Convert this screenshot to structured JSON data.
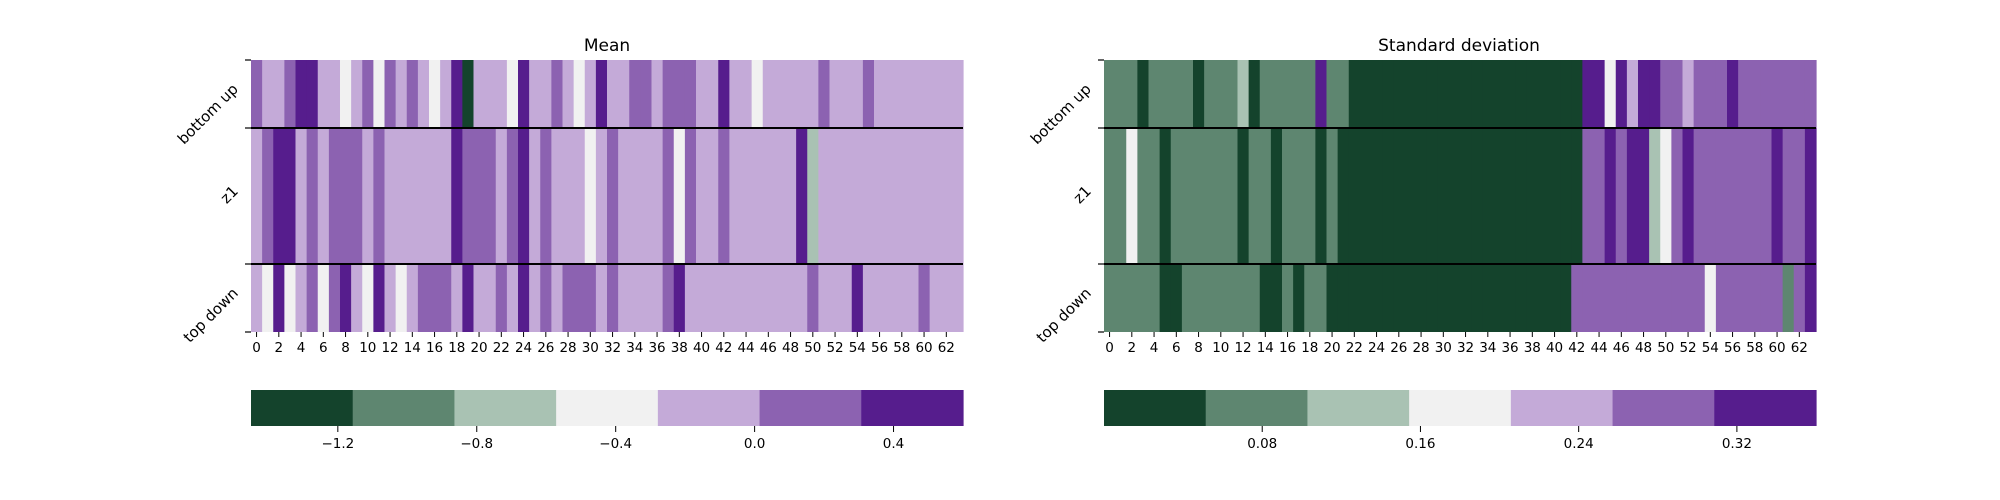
{
  "palette": [
    "#14432c",
    "#5e8670",
    "#a9c2b3",
    "#f1f1f1",
    "#c4aad8",
    "#8c62b1",
    "#561d8d"
  ],
  "row_labels": [
    "bottom up",
    "z1",
    "top down"
  ],
  "x_tick_labels": [
    "0",
    "2",
    "4",
    "6",
    "8",
    "10",
    "12",
    "14",
    "16",
    "18",
    "20",
    "22",
    "24",
    "26",
    "28",
    "30",
    "32",
    "34",
    "36",
    "38",
    "40",
    "42",
    "44",
    "46",
    "48",
    "50",
    "52",
    "54",
    "56",
    "58",
    "60",
    "62"
  ],
  "chart_data": [
    {
      "type": "heatmap",
      "title": "Mean",
      "rows": [
        "bottom up",
        "z1",
        "top down"
      ],
      "columns": 64,
      "color_levels": [
        -1.45,
        -1.1,
        -0.8,
        -0.45,
        -0.1,
        0.2,
        0.5
      ],
      "values": [
        [
          0.2,
          -0.1,
          -0.1,
          0.2,
          0.5,
          0.5,
          -0.1,
          -0.1,
          -0.45,
          -0.1,
          0.2,
          -0.45,
          0.2,
          -0.1,
          0.2,
          -0.1,
          -0.45,
          -0.1,
          0.5,
          -1.45,
          -0.1,
          -0.1,
          -0.1,
          -0.45,
          0.5,
          -0.1,
          -0.1,
          0.2,
          -0.1,
          -0.45,
          -0.1,
          0.5,
          -0.1,
          -0.1,
          0.2,
          0.2,
          -0.1,
          0.2,
          0.2,
          0.2,
          -0.1,
          -0.1,
          0.5,
          -0.1,
          -0.1,
          -0.45,
          -0.1,
          -0.1,
          -0.1,
          -0.1,
          -0.1,
          0.2,
          -0.1,
          -0.1,
          -0.1,
          0.2,
          -0.1,
          -0.1,
          -0.1,
          -0.1,
          -0.1,
          -0.1,
          -0.1,
          -0.1
        ],
        [
          -0.1,
          0.2,
          0.5,
          0.5,
          -0.1,
          0.2,
          -0.1,
          0.2,
          0.2,
          0.2,
          -0.1,
          0.2,
          -0.1,
          -0.1,
          -0.1,
          -0.1,
          -0.1,
          -0.1,
          0.5,
          0.2,
          0.2,
          0.2,
          -0.1,
          0.2,
          0.5,
          -0.1,
          0.2,
          -0.1,
          -0.1,
          -0.1,
          -0.45,
          -0.1,
          0.2,
          -0.1,
          -0.1,
          -0.1,
          -0.1,
          0.2,
          -0.45,
          0.2,
          -0.1,
          -0.1,
          0.2,
          -0.1,
          -0.1,
          -0.1,
          -0.1,
          -0.1,
          -0.1,
          0.5,
          -0.8,
          -0.1,
          -0.1,
          -0.1,
          -0.1,
          -0.1,
          -0.1,
          -0.1,
          -0.1,
          -0.1,
          -0.1,
          -0.1,
          -0.1,
          -0.1
        ],
        [
          -0.1,
          -0.45,
          0.5,
          -0.45,
          -0.1,
          0.2,
          -0.45,
          0.2,
          0.5,
          -0.1,
          -0.45,
          0.5,
          -0.1,
          -0.45,
          -0.1,
          0.2,
          0.2,
          0.2,
          -0.1,
          0.5,
          -0.1,
          -0.1,
          0.2,
          -0.1,
          0.5,
          -0.1,
          0.2,
          -0.1,
          0.2,
          0.2,
          0.2,
          -0.1,
          0.2,
          -0.1,
          -0.1,
          -0.1,
          -0.1,
          0.2,
          0.5,
          -0.1,
          -0.1,
          -0.1,
          -0.1,
          -0.1,
          -0.1,
          -0.1,
          -0.1,
          -0.1,
          -0.1,
          -0.1,
          0.2,
          -0.1,
          -0.1,
          -0.1,
          0.5,
          -0.1,
          -0.1,
          -0.1,
          -0.1,
          -0.1,
          0.2,
          -0.1,
          -0.1,
          -0.1
        ]
      ],
      "colorbar": {
        "ticks": [
          -1.2,
          -0.8,
          -0.4,
          0.0,
          0.4
        ],
        "tick_labels": [
          "−1.2",
          "−0.8",
          "−0.4",
          "0.0",
          "0.4"
        ],
        "range": [
          -1.45,
          0.6
        ]
      }
    },
    {
      "type": "heatmap",
      "title": "Standard deviation",
      "rows": [
        "bottom up",
        "z1",
        "top down"
      ],
      "columns": 64,
      "color_levels": [
        0.01,
        0.07,
        0.13,
        0.19,
        0.24,
        0.29,
        0.35
      ],
      "values": [
        [
          0.07,
          0.07,
          0.07,
          0.01,
          0.07,
          0.07,
          0.07,
          0.07,
          0.01,
          0.07,
          0.07,
          0.07,
          0.13,
          0.01,
          0.07,
          0.07,
          0.07,
          0.07,
          0.07,
          0.35,
          0.07,
          0.07,
          0.01,
          0.01,
          0.01,
          0.01,
          0.01,
          0.01,
          0.01,
          0.01,
          0.01,
          0.01,
          0.01,
          0.01,
          0.01,
          0.01,
          0.01,
          0.01,
          0.01,
          0.01,
          0.01,
          0.01,
          0.01,
          0.35,
          0.35,
          0.19,
          0.35,
          0.24,
          0.35,
          0.35,
          0.29,
          0.29,
          0.24,
          0.29,
          0.29,
          0.29,
          0.35,
          0.29,
          0.29,
          0.29,
          0.29,
          0.29,
          0.29,
          0.29
        ],
        [
          0.07,
          0.07,
          0.19,
          0.07,
          0.07,
          0.01,
          0.07,
          0.07,
          0.07,
          0.07,
          0.07,
          0.07,
          0.01,
          0.07,
          0.07,
          0.01,
          0.07,
          0.07,
          0.07,
          0.01,
          0.07,
          0.01,
          0.01,
          0.01,
          0.01,
          0.01,
          0.01,
          0.01,
          0.01,
          0.01,
          0.01,
          0.01,
          0.01,
          0.01,
          0.01,
          0.01,
          0.01,
          0.01,
          0.01,
          0.01,
          0.01,
          0.01,
          0.01,
          0.29,
          0.29,
          0.35,
          0.29,
          0.35,
          0.35,
          0.13,
          0.19,
          0.29,
          0.35,
          0.29,
          0.29,
          0.29,
          0.29,
          0.29,
          0.29,
          0.29,
          0.35,
          0.29,
          0.29,
          0.35
        ],
        [
          0.07,
          0.07,
          0.07,
          0.07,
          0.07,
          0.01,
          0.01,
          0.07,
          0.07,
          0.07,
          0.07,
          0.07,
          0.07,
          0.07,
          0.01,
          0.01,
          0.07,
          0.01,
          0.07,
          0.07,
          0.01,
          0.01,
          0.01,
          0.01,
          0.01,
          0.01,
          0.01,
          0.01,
          0.01,
          0.01,
          0.01,
          0.01,
          0.01,
          0.01,
          0.01,
          0.01,
          0.01,
          0.01,
          0.01,
          0.01,
          0.01,
          0.01,
          0.29,
          0.29,
          0.29,
          0.29,
          0.29,
          0.29,
          0.29,
          0.29,
          0.29,
          0.29,
          0.29,
          0.29,
          0.19,
          0.29,
          0.29,
          0.29,
          0.29,
          0.29,
          0.29,
          0.07,
          0.29,
          0.35
        ]
      ],
      "colorbar": {
        "ticks": [
          0.08,
          0.16,
          0.24,
          0.32
        ],
        "tick_labels": [
          "0.08",
          "0.16",
          "0.24",
          "0.32"
        ],
        "range": [
          0.0,
          0.36
        ]
      }
    }
  ]
}
